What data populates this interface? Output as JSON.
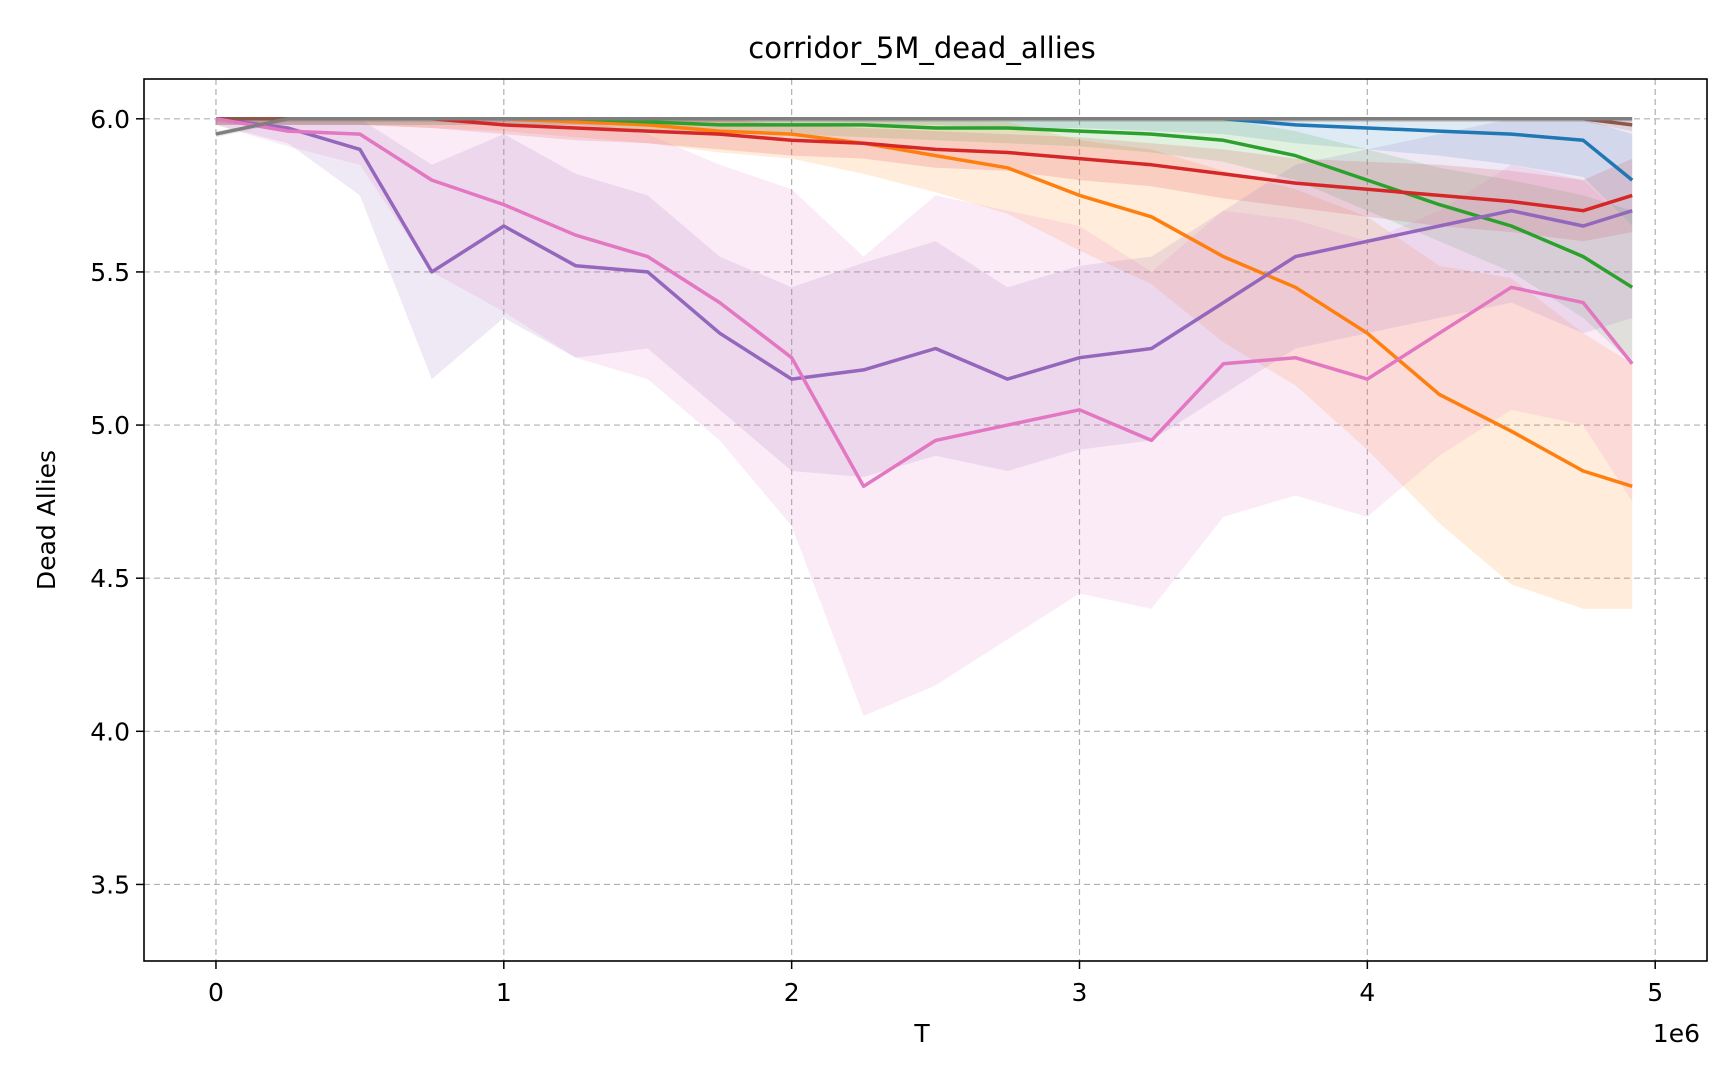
{
  "chart_data": {
    "type": "line",
    "title": "corridor_5M_dead_allies",
    "xlabel": "T",
    "ylabel": "Dead Allies",
    "x_offset_label": "1e6",
    "xlim": [
      -250000,
      5180000
    ],
    "ylim": [
      3.25,
      6.13
    ],
    "x_ticks": [
      0,
      1000000,
      2000000,
      3000000,
      4000000,
      5000000
    ],
    "x_tick_labels": [
      "0",
      "1",
      "2",
      "3",
      "4",
      "5"
    ],
    "y_ticks": [
      3.5,
      4.0,
      4.5,
      5.0,
      5.5,
      6.0
    ],
    "y_tick_labels": [
      "3.5",
      "4.0",
      "4.5",
      "5.0",
      "5.5",
      "6.0"
    ],
    "grid": true,
    "legend": "none",
    "x": [
      0,
      250000,
      500000,
      750000,
      1000000,
      1250000,
      1500000,
      1750000,
      2000000,
      2250000,
      2500000,
      2750000,
      3000000,
      3250000,
      3500000,
      3750000,
      4000000,
      4250000,
      4500000,
      4750000,
      4920000
    ],
    "series": [
      {
        "color": "#1f77b4",
        "values": [
          6.0,
          6.0,
          6.0,
          6.0,
          6.0,
          6.0,
          6.0,
          6.0,
          6.0,
          6.0,
          6.0,
          6.0,
          6.0,
          6.0,
          6.0,
          5.98,
          5.97,
          5.96,
          5.95,
          5.93,
          5.8
        ],
        "band": [
          0.02,
          0.02,
          0.02,
          0.02,
          0.02,
          0.02,
          0.02,
          0.02,
          0.02,
          0.02,
          0.02,
          0.03,
          0.03,
          0.04,
          0.05,
          0.06,
          0.07,
          0.08,
          0.1,
          0.12,
          0.15
        ]
      },
      {
        "color": "#ff7f0e",
        "values": [
          6.0,
          6.0,
          6.0,
          6.0,
          6.0,
          5.99,
          5.98,
          5.96,
          5.95,
          5.92,
          5.88,
          5.84,
          5.75,
          5.68,
          5.55,
          5.45,
          5.3,
          5.1,
          4.98,
          4.85,
          4.8
        ],
        "band": [
          0.02,
          0.02,
          0.02,
          0.03,
          0.04,
          0.05,
          0.06,
          0.07,
          0.08,
          0.1,
          0.12,
          0.15,
          0.18,
          0.22,
          0.28,
          0.32,
          0.38,
          0.42,
          0.5,
          0.45,
          0.4
        ]
      },
      {
        "color": "#2ca02c",
        "values": [
          6.0,
          6.0,
          6.0,
          6.0,
          6.0,
          6.0,
          5.99,
          5.98,
          5.98,
          5.98,
          5.97,
          5.97,
          5.96,
          5.95,
          5.93,
          5.88,
          5.8,
          5.72,
          5.65,
          5.55,
          5.45
        ],
        "band": [
          0.02,
          0.02,
          0.02,
          0.02,
          0.02,
          0.02,
          0.03,
          0.03,
          0.03,
          0.04,
          0.04,
          0.05,
          0.05,
          0.06,
          0.07,
          0.08,
          0.1,
          0.12,
          0.15,
          0.2,
          0.25
        ]
      },
      {
        "color": "#d62728",
        "values": [
          6.0,
          6.0,
          6.0,
          6.0,
          5.98,
          5.97,
          5.96,
          5.95,
          5.93,
          5.92,
          5.9,
          5.89,
          5.87,
          5.85,
          5.82,
          5.79,
          5.77,
          5.75,
          5.73,
          5.7,
          5.75
        ],
        "band": [
          0.02,
          0.02,
          0.02,
          0.03,
          0.03,
          0.04,
          0.04,
          0.05,
          0.05,
          0.05,
          0.06,
          0.06,
          0.07,
          0.07,
          0.08,
          0.08,
          0.09,
          0.1,
          0.1,
          0.1,
          0.12
        ]
      },
      {
        "color": "#9467bd",
        "values": [
          6.0,
          5.97,
          5.9,
          5.5,
          5.65,
          5.52,
          5.5,
          5.3,
          5.15,
          5.18,
          5.25,
          5.15,
          5.22,
          5.25,
          5.4,
          5.55,
          5.6,
          5.65,
          5.7,
          5.65,
          5.7
        ],
        "band": [
          0.02,
          0.05,
          0.15,
          0.35,
          0.3,
          0.3,
          0.25,
          0.25,
          0.3,
          0.35,
          0.35,
          0.3,
          0.3,
          0.3,
          0.3,
          0.3,
          0.3,
          0.3,
          0.3,
          0.35,
          0.35
        ]
      },
      {
        "color": "#8c564b",
        "values": [
          6.0,
          6.0,
          6.0,
          6.0,
          6.0,
          6.0,
          6.0,
          6.0,
          6.0,
          6.0,
          6.0,
          6.0,
          6.0,
          6.0,
          6.0,
          6.0,
          6.0,
          6.0,
          6.0,
          6.0,
          5.98
        ],
        "band": [
          0.01,
          0.01,
          0.01,
          0.01,
          0.01,
          0.01,
          0.01,
          0.01,
          0.01,
          0.01,
          0.01,
          0.01,
          0.01,
          0.01,
          0.01,
          0.01,
          0.01,
          0.01,
          0.01,
          0.01,
          0.02
        ]
      },
      {
        "color": "#e377c2",
        "values": [
          6.0,
          5.96,
          5.95,
          5.8,
          5.72,
          5.62,
          5.55,
          5.4,
          5.22,
          4.8,
          4.95,
          5.0,
          5.05,
          4.95,
          5.2,
          5.22,
          5.15,
          5.3,
          5.45,
          5.4,
          5.2
        ],
        "band": [
          0.02,
          0.05,
          0.1,
          0.3,
          0.35,
          0.4,
          0.4,
          0.45,
          0.55,
          0.75,
          0.8,
          0.7,
          0.6,
          0.55,
          0.5,
          0.45,
          0.45,
          0.4,
          0.4,
          0.4,
          0.45
        ]
      },
      {
        "color": "#7f7f7f",
        "values": [
          5.95,
          6.0,
          6.0,
          6.0,
          6.0,
          6.0,
          6.0,
          6.0,
          6.0,
          6.0,
          6.0,
          6.0,
          6.0,
          6.0,
          6.0,
          6.0,
          6.0,
          6.0,
          6.0,
          6.0,
          6.0
        ],
        "band": [
          0.01,
          0.01,
          0.01,
          0.01,
          0.01,
          0.01,
          0.01,
          0.01,
          0.01,
          0.01,
          0.01,
          0.01,
          0.01,
          0.01,
          0.01,
          0.01,
          0.01,
          0.01,
          0.01,
          0.01,
          0.01
        ]
      }
    ]
  }
}
